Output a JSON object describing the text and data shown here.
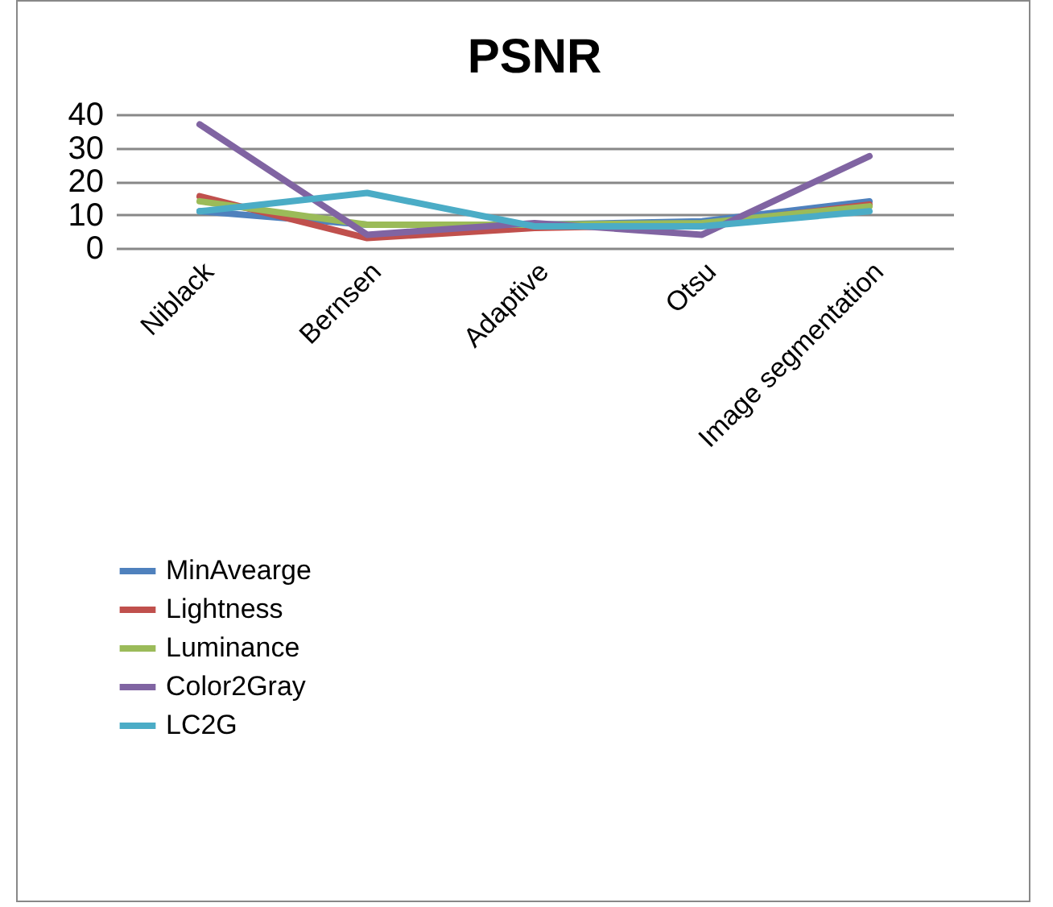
{
  "chart_data": {
    "type": "line",
    "title": "PSNR",
    "categories": [
      "Niblack",
      "Bernsen",
      "Adaptive",
      "Otsu",
      "Image segmentation"
    ],
    "series": [
      {
        "name": "MinAvearge",
        "color": "#4f81bd",
        "values": [
          11,
          7,
          7,
          8,
          14
        ]
      },
      {
        "name": "Lightness",
        "color": "#c0504d",
        "values": [
          15.5,
          3,
          6,
          7,
          13
        ]
      },
      {
        "name": "Luminance",
        "color": "#9bbb59",
        "values": [
          14,
          7,
          7,
          7.5,
          12.5
        ]
      },
      {
        "name": "Color2Gray",
        "color": "#8064a2",
        "values": [
          37,
          4,
          7.5,
          4,
          27.5
        ]
      },
      {
        "name": "LC2G",
        "color": "#4bacc6",
        "values": [
          11,
          16.5,
          6.5,
          6.5,
          11
        ]
      }
    ],
    "ylim": [
      0,
      40
    ],
    "yticks": [
      0,
      10,
      20,
      30,
      40
    ],
    "grid": "y",
    "legend": "bottom",
    "marker": "none",
    "line_style": "solid"
  }
}
